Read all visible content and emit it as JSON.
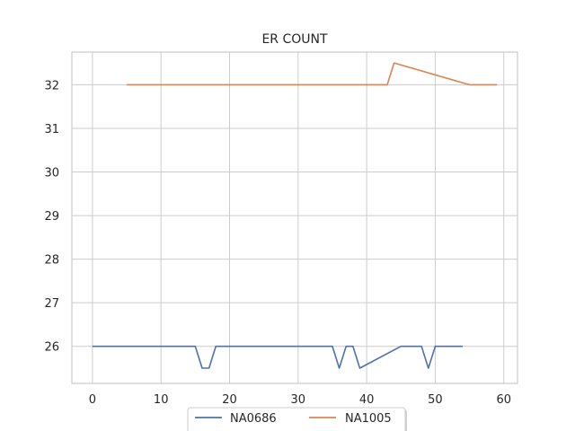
{
  "chart_data": {
    "type": "line",
    "title": "ER COUNT",
    "xlabel": "",
    "ylabel": "",
    "xlim": [
      -3,
      62
    ],
    "ylim": [
      25.15,
      32.75
    ],
    "xticks": [
      0,
      10,
      20,
      30,
      40,
      50,
      60
    ],
    "yticks": [
      26,
      27,
      28,
      29,
      30,
      31,
      32
    ],
    "grid": true,
    "legend_position": "bottom-center",
    "series": [
      {
        "name": "NA0686",
        "color": "#4c72b0",
        "points": [
          [
            0,
            26
          ],
          [
            15,
            26
          ],
          [
            16,
            25.5
          ],
          [
            17,
            25.5
          ],
          [
            18,
            26
          ],
          [
            35,
            26
          ],
          [
            36,
            25.5
          ],
          [
            37,
            26
          ],
          [
            38,
            26
          ],
          [
            39,
            25.5
          ],
          [
            45,
            26
          ],
          [
            48,
            26
          ],
          [
            49,
            25.5
          ],
          [
            50,
            26
          ],
          [
            54,
            26
          ]
        ]
      },
      {
        "name": "NA1005",
        "color": "#dd8452",
        "points": [
          [
            5,
            32
          ],
          [
            43,
            32
          ],
          [
            44,
            32.5
          ],
          [
            55,
            32
          ],
          [
            59,
            32
          ]
        ]
      }
    ]
  }
}
